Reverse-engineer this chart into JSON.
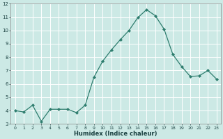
{
  "x": [
    0,
    1,
    2,
    3,
    4,
    5,
    6,
    7,
    8,
    9,
    10,
    11,
    12,
    13,
    14,
    15,
    16,
    17,
    18,
    19,
    20,
    21,
    22,
    23
  ],
  "y": [
    4.0,
    3.9,
    4.4,
    3.2,
    4.1,
    4.1,
    4.1,
    3.85,
    4.4,
    6.5,
    7.7,
    8.55,
    9.3,
    10.0,
    10.95,
    11.55,
    11.1,
    10.1,
    8.2,
    7.3,
    6.55,
    6.6,
    7.0,
    6.35
  ],
  "xlabel": "Humidex (Indice chaleur)",
  "ylabel": "",
  "ylim": [
    3,
    12
  ],
  "xlim": [
    -0.5,
    23.5
  ],
  "yticks": [
    3,
    4,
    5,
    6,
    7,
    8,
    9,
    10,
    11,
    12
  ],
  "xticks": [
    0,
    1,
    2,
    3,
    4,
    5,
    6,
    7,
    8,
    9,
    10,
    11,
    12,
    13,
    14,
    15,
    16,
    17,
    18,
    19,
    20,
    21,
    22,
    23
  ],
  "line_color": "#2e7d6e",
  "marker": "D",
  "marker_size": 2.0,
  "bg_color": "#cce9e5",
  "grid_color": "#ffffff",
  "tick_label_color": "#1a4040",
  "xlabel_color": "#1a4040"
}
